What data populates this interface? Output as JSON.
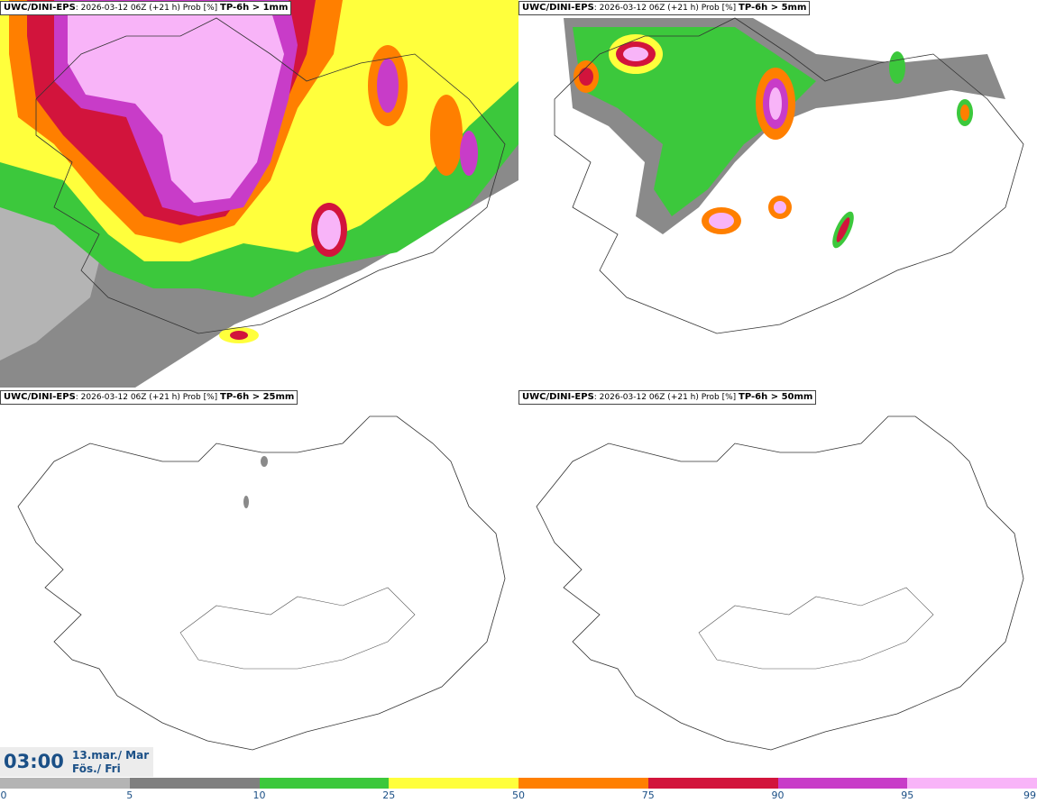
{
  "panels": [
    {
      "model": "UWC/DINI-EPS",
      "info": ": 2026-03-12 06Z (+21 h) Prob [%] ",
      "param": "TP-6h > 1mm"
    },
    {
      "model": "UWC/DINI-EPS",
      "info": ": 2026-03-12 06Z (+21 h) Prob [%] ",
      "param": "TP-6h > 5mm"
    },
    {
      "model": "UWC/DINI-EPS",
      "info": ": 2026-03-12 06Z (+21 h) Prob [%] ",
      "param": "TP-6h > 25mm"
    },
    {
      "model": "UWC/DINI-EPS",
      "info": ": 2026-03-12 06Z (+21 h) Prob [%] ",
      "param": "TP-6h > 50mm"
    }
  ],
  "valid": {
    "time": "03:00",
    "date_line1": "13.mar./ Mar",
    "date_line2": "Fös./ Fri"
  },
  "colorbar": {
    "ticks": [
      "0",
      "5",
      "10",
      "25",
      "50",
      "75",
      "90",
      "95",
      "99"
    ],
    "colors": [
      "#b4b4b4",
      "#7f7f7f",
      "#3cc83c",
      "#ffff3c",
      "#ff7f00",
      "#d2143c",
      "#c83cc8",
      "#f8b4f8"
    ]
  }
}
